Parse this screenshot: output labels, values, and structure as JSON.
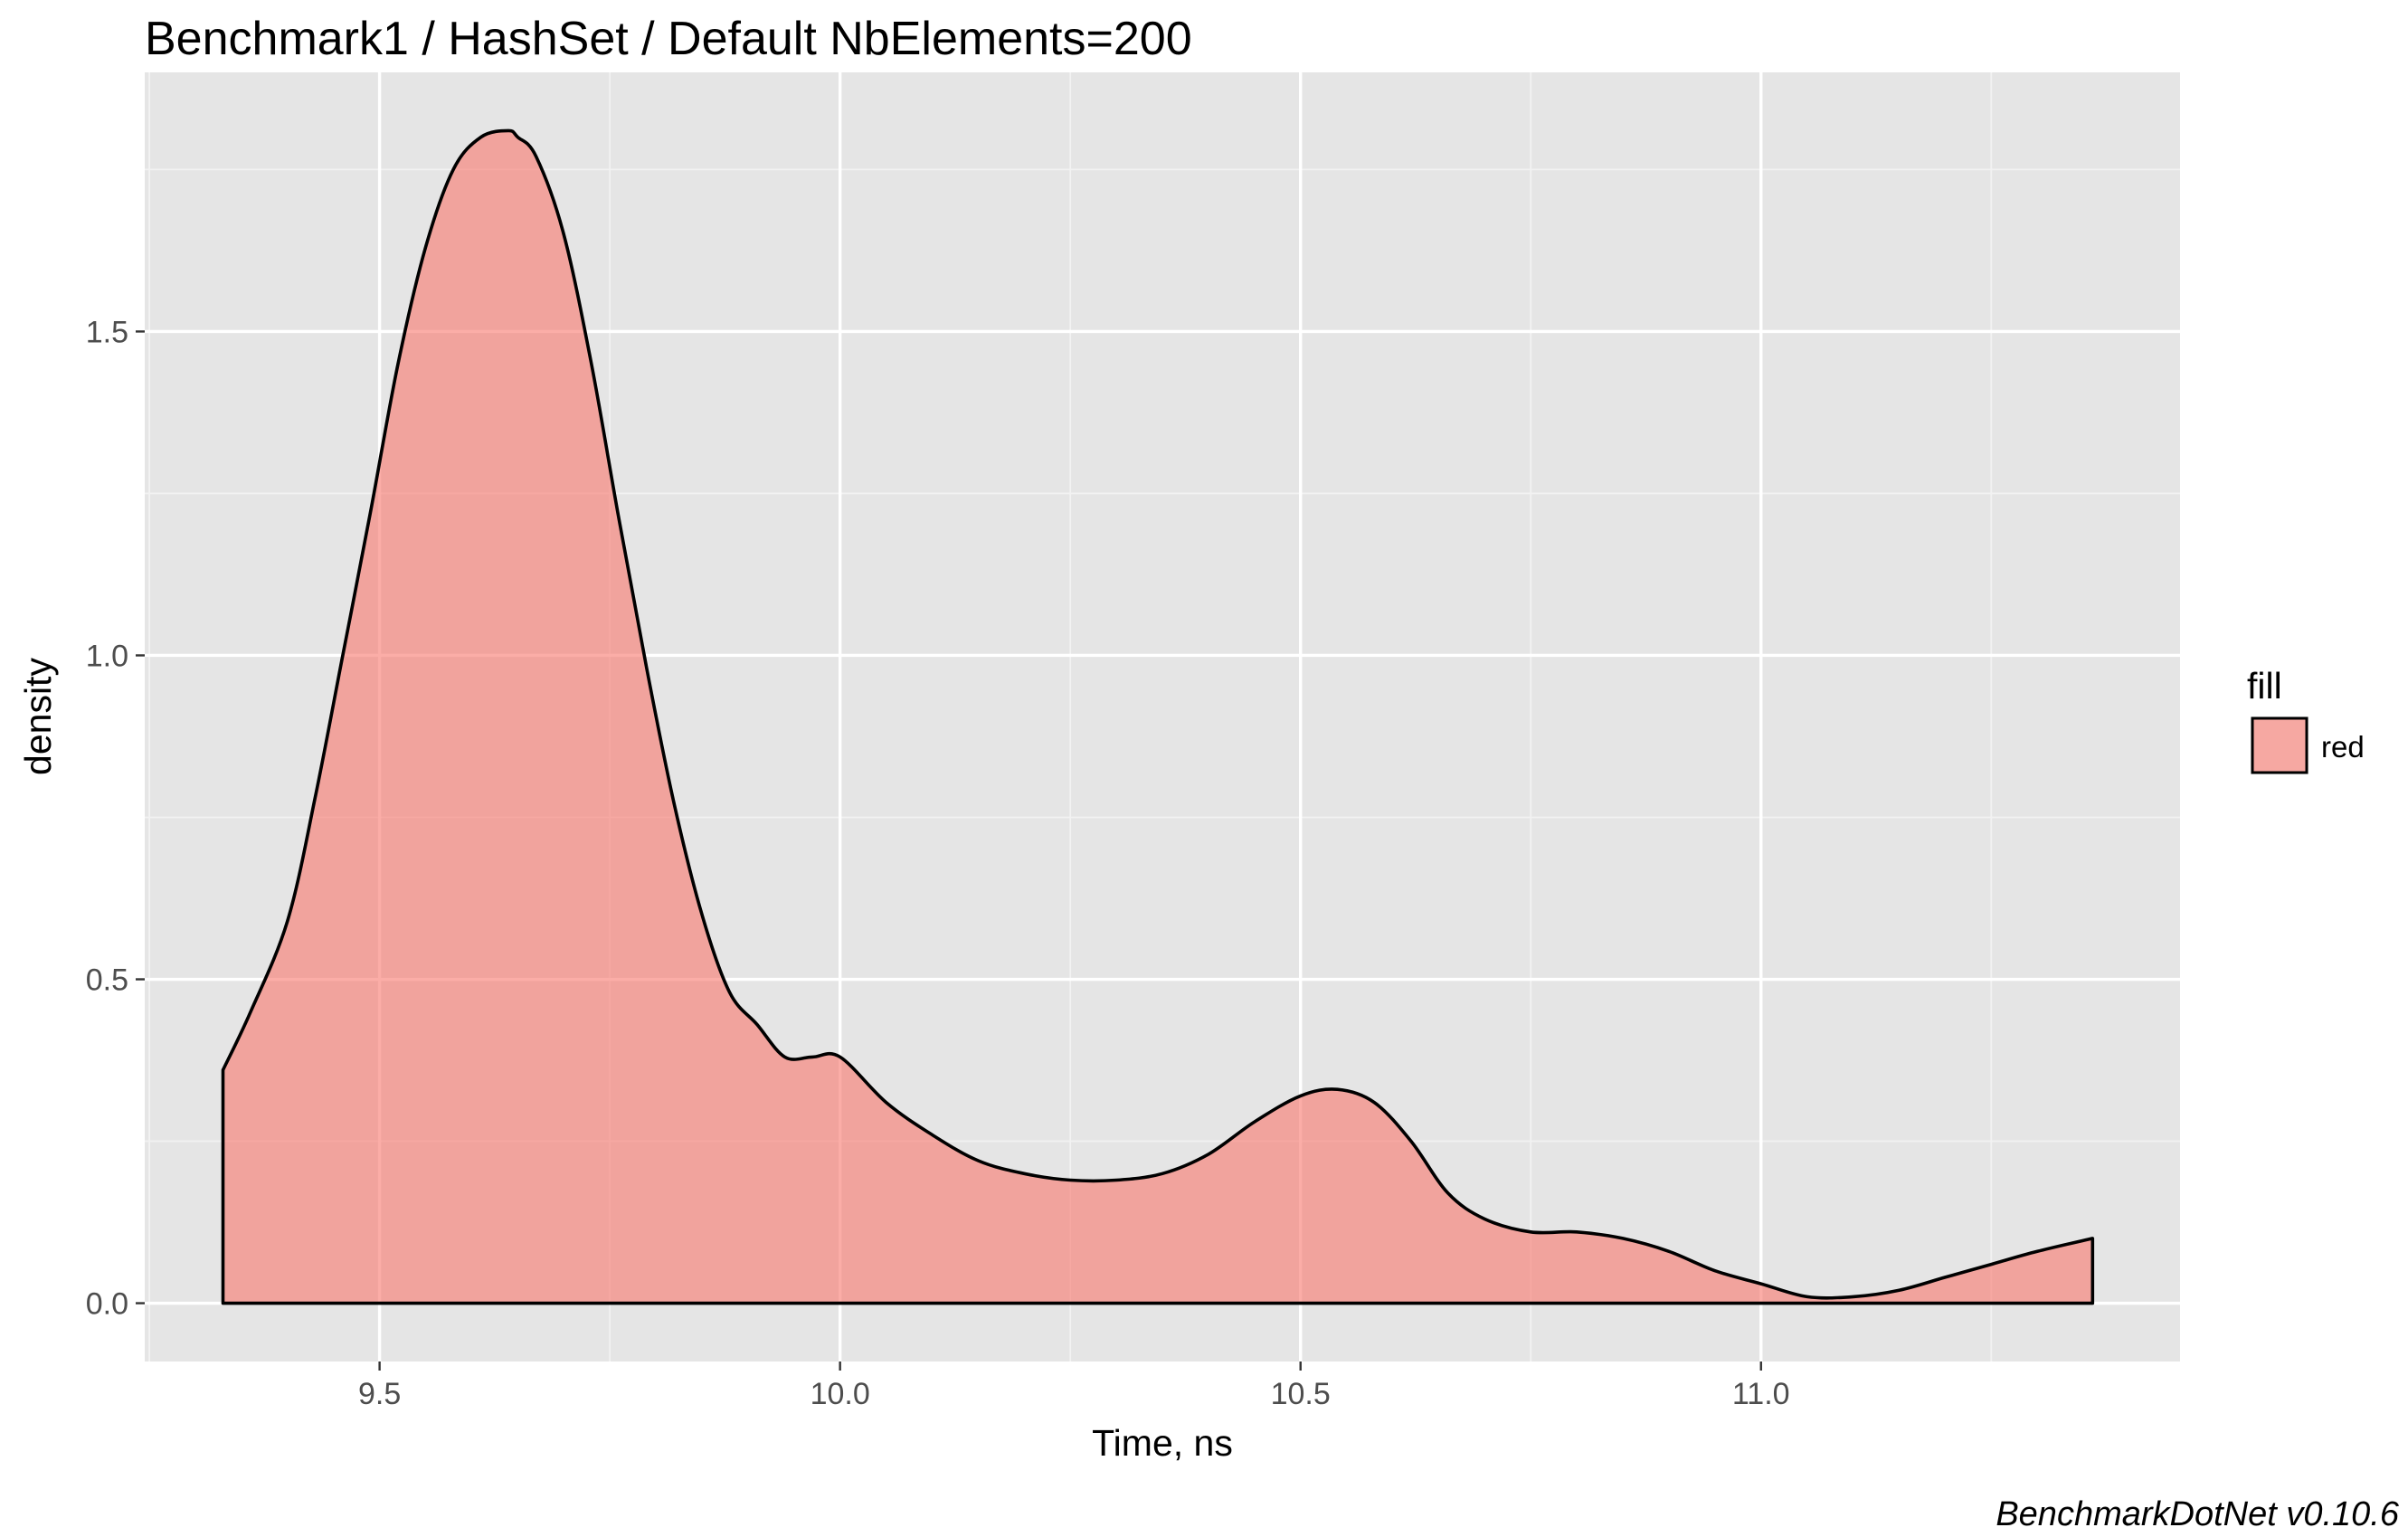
{
  "chart_data": {
    "type": "area",
    "title": "Benchmark1 / HashSet / Default NbElements=200",
    "xlabel": "Time, ns",
    "ylabel": "density",
    "xlim": [
      9.245,
      11.455
    ],
    "ylim": [
      -0.09,
      1.9
    ],
    "x_ticks": [
      9.5,
      10.0,
      10.5,
      11.0
    ],
    "x_tick_labels": [
      "9.5",
      "10.0",
      "10.5",
      "11.0"
    ],
    "y_ticks": [
      0.0,
      0.5,
      1.0,
      1.5
    ],
    "y_tick_labels": [
      "0.0",
      "0.5",
      "1.0",
      "1.5"
    ],
    "grid": true,
    "legend": {
      "title": "fill",
      "position": "right",
      "entries": [
        {
          "label": "red",
          "color": "#f8766d"
        }
      ]
    },
    "fill_color": "#f8766d",
    "panel_color": "#e5e5e5",
    "series": [
      {
        "x": [
          9.33,
          9.36,
          9.4,
          9.43,
          9.46,
          9.49,
          9.52,
          9.55,
          9.58,
          9.61,
          9.64,
          9.65,
          9.67,
          9.7,
          9.73,
          9.76,
          9.79,
          9.82,
          9.85,
          9.88,
          9.91,
          9.94,
          9.97,
          10.0,
          10.05,
          10.1,
          10.15,
          10.2,
          10.25,
          10.3,
          10.35,
          10.4,
          10.45,
          10.5,
          10.54,
          10.58,
          10.62,
          10.66,
          10.7,
          10.75,
          10.8,
          10.85,
          10.9,
          10.95,
          11.0,
          11.05,
          11.1,
          11.15,
          11.2,
          11.25,
          11.3,
          11.36
        ],
        "y": [
          0.36,
          0.45,
          0.59,
          0.78,
          1.0,
          1.22,
          1.45,
          1.63,
          1.75,
          1.8,
          1.81,
          1.8,
          1.77,
          1.65,
          1.45,
          1.21,
          0.98,
          0.77,
          0.6,
          0.48,
          0.43,
          0.38,
          0.38,
          0.38,
          0.31,
          0.26,
          0.22,
          0.2,
          0.19,
          0.19,
          0.2,
          0.23,
          0.28,
          0.32,
          0.33,
          0.31,
          0.25,
          0.17,
          0.13,
          0.11,
          0.11,
          0.1,
          0.08,
          0.05,
          0.03,
          0.01,
          0.01,
          0.02,
          0.04,
          0.06,
          0.08,
          0.1
        ]
      }
    ]
  },
  "caption": "BenchmarkDotNet v0.10.6"
}
